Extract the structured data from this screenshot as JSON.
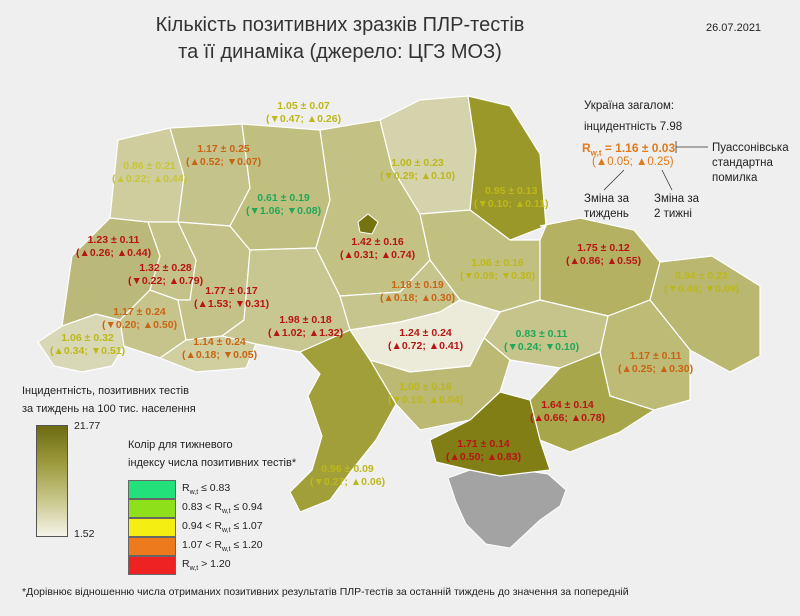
{
  "title_line1": "Кількість позитивних зразків ПЛР-тестів",
  "title_line2": "та її динаміка (джерело: ЦГЗ МОЗ)",
  "date": "26.07.2021",
  "ukraine_summary": {
    "heading": "Україна загалом:",
    "incidence": "інцидентність 7.98",
    "rwt": "= 1.16 ± 0.03",
    "changes": "(▲0.05; ▲0.25)"
  },
  "annotations": {
    "poisson_line1": "Пуассонівська",
    "poisson_line2": "стандартна",
    "poisson_line3": "помилка",
    "change_week_line1": "Зміна за",
    "change_week_line2": "тиждень",
    "change_2weeks_line1": "Зміна за",
    "change_2weeks_line2": "2 тижні"
  },
  "legend": {
    "incidence_title_line1": "Інцидентність, позитивних тестів",
    "incidence_title_line2": "за тиждень на 100 тис. населення",
    "max": "21.77",
    "min": "1.52",
    "color_title_line1": "Колір для тижневого",
    "color_title_line2": "індексу числа позитивних тестів*",
    "rows": [
      {
        "text": "≤ 0.83",
        "prefix": "",
        "color": "#22e07a"
      },
      {
        "text": "< R",
        "prefix": "0.83 ",
        "suffix": " ≤ 0.94",
        "color": "#8ee01a"
      },
      {
        "text": "< R",
        "prefix": "0.94 ",
        "suffix": " ≤ 1.07",
        "color": "#f4ee12"
      },
      {
        "text": "< R",
        "prefix": "1.07 ",
        "suffix": " ≤ 1.20",
        "color": "#ee7a1e"
      },
      {
        "text": "> 1.20",
        "prefix": "",
        "color": "#ee2222"
      }
    ],
    "r_symbol": "R",
    "r_sub": "w,t"
  },
  "footnote": "*Дорівнює відношенню числа отриманих позитивних результатів ПЛР-тестів за останній тиждень до значення за попередній",
  "regions": [
    {
      "name": "volyn",
      "r": "0.86 ± 0.21",
      "c": "(▲0.22; ▲0.44)",
      "color": "#c8c636",
      "fill": "#cfcd9e"
    },
    {
      "name": "rivne",
      "r": "1.17 ± 0.25",
      "c": "(▲0.52; ▼0.07)",
      "color": "#c96414",
      "fill": "#c5c38c"
    },
    {
      "name": "zhytomyr",
      "r": "0.61 ± 0.19",
      "c": "(▼1.06; ▼0.08)",
      "color": "#1fa85a",
      "fill": "#c1bf80"
    },
    {
      "name": "kyiv-region",
      "r": "1.42 ± 0.16",
      "c": "(▲0.31; ▲0.74)",
      "color": "#b81414",
      "fill": "#c3c184"
    },
    {
      "name": "chernihiv",
      "r": "1.05 ± 0.07",
      "c": "(▼0.47; ▲0.26)",
      "color": "#bdb81a",
      "fill": "#d1d0a2"
    },
    {
      "name": "chernihiv-east",
      "r": "1.00 ± 0.23",
      "c": "(▼0.29; ▲0.10)",
      "color": "#bdb81a",
      "fill": "#d4d3ab"
    },
    {
      "name": "sumy",
      "r": "0.95 ± 0.13",
      "c": "(▼0.10; ▲0.11)",
      "color": "#bdb81a",
      "fill": "#9a9828"
    },
    {
      "name": "lviv",
      "r": "1.23 ± 0.11",
      "c": "(▲0.26; ▲0.44)",
      "color": "#b81414",
      "fill": "#bbb97a"
    },
    {
      "name": "ternopil",
      "r": "1.32 ± 0.28",
      "c": "(▼0.22; ▲0.79)",
      "color": "#b81414",
      "fill": "#c4c288"
    },
    {
      "name": "khmelnytskyi",
      "r": "1.77 ± 0.17",
      "c": "(▲1.53; ▼0.31)",
      "color": "#b81414",
      "fill": "#c4c288"
    },
    {
      "name": "vinnytsia",
      "r": "1.98 ± 0.18",
      "c": "(▲1.02; ▲1.32)",
      "color": "#b81414",
      "fill": "#c9c791"
    },
    {
      "name": "cherkasy",
      "r": "1.18 ± 0.19",
      "c": "(▲0.18; ▲0.30)",
      "color": "#c96414",
      "fill": "#c7c58e"
    },
    {
      "name": "poltava",
      "r": "1.06 ± 0.16",
      "c": "(▼0.09; ▼0.30)",
      "color": "#bdb81a",
      "fill": "#c2c080"
    },
    {
      "name": "kharkiv",
      "r": "1.75 ± 0.12",
      "c": "(▲0.86; ▲0.55)",
      "color": "#b81414",
      "fill": "#b4b162"
    },
    {
      "name": "luhansk",
      "r": "0.94 ± 0.23",
      "c": "(▼0.46; ▼0.09)",
      "color": "#bdb81a",
      "fill": "#b9b770"
    },
    {
      "name": "zakarpattia",
      "r": "1.06 ± 0.32",
      "c": "(▲0.34; ▼0.51)",
      "color": "#bdb81a",
      "fill": "#d9d8b6"
    },
    {
      "name": "ivano-frankivsk",
      "r": "1.17 ± 0.24",
      "c": "(▼0.20; ▲0.50)",
      "color": "#c96414",
      "fill": "#c6c48b"
    },
    {
      "name": "chernivtsi",
      "r": "1.14 ± 0.24",
      "c": "(▲0.18; ▼0.05)",
      "color": "#c96414",
      "fill": "#d0cf9f"
    },
    {
      "name": "kirovohrad",
      "r": "1.24 ± 0.24",
      "c": "(▲0.72; ▲0.41)",
      "color": "#b81414",
      "fill": "#ecebd9"
    },
    {
      "name": "dnipro",
      "r": "0.83 ± 0.11",
      "c": "(▼0.24; ▼0.10)",
      "color": "#1fa85a",
      "fill": "#c6c48b"
    },
    {
      "name": "donetsk",
      "r": "1.17 ± 0.11",
      "c": "(▲0.25; ▲0.30)",
      "color": "#c96414",
      "fill": "#bdbb76"
    },
    {
      "name": "mykolaiv",
      "r": "1.00 ± 0.16",
      "c": "(▼0.10; ▲0.04)",
      "color": "#bdb81a",
      "fill": "#bbb974"
    },
    {
      "name": "zaporizhzhia",
      "r": "1.64 ± 0.14",
      "c": "(▲0.66; ▲0.78)",
      "color": "#b81414",
      "fill": "#a8a64a"
    },
    {
      "name": "kherson",
      "r": "1.71 ± 0.14",
      "c": "(▲0.50; ▲0.83)",
      "color": "#b81414",
      "fill": "#807e14"
    },
    {
      "name": "odesa",
      "r": "0.96 ± 0.09",
      "c": "(▼0.27; ▲0.06)",
      "color": "#bdb81a",
      "fill": "#a19f3a"
    }
  ]
}
